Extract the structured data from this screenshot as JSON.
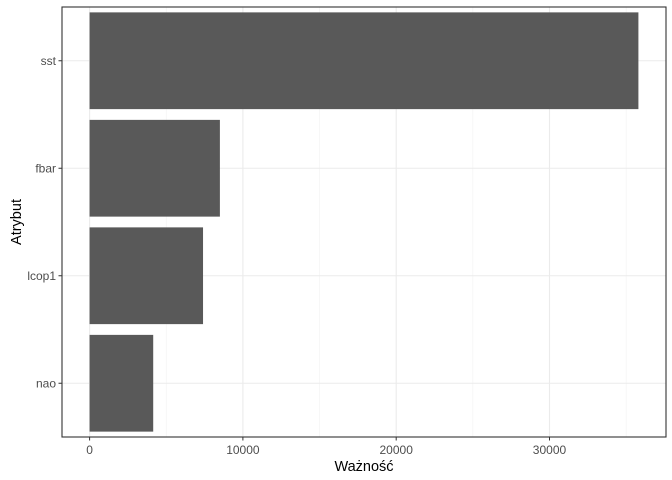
{
  "chart_data": {
    "type": "bar",
    "orientation": "horizontal",
    "categories": [
      "sst",
      "fbar",
      "lcop1",
      "nao"
    ],
    "values": [
      35800,
      8500,
      7400,
      4150
    ],
    "xlabel": "Ważność",
    "ylabel": "Atrybut",
    "xlim": [
      -1800,
      37600
    ],
    "xticks": [
      0,
      10000,
      20000,
      30000
    ],
    "xtick_labels": [
      "0",
      "10000",
      "20000",
      "30000"
    ],
    "grid": true,
    "legend": "none",
    "colors": {
      "bar": "#595959",
      "grid_major": "#ebebeb",
      "grid_minor": "#f2f2f2",
      "panel_border": "#333333",
      "tick_text": "#4d4d4d",
      "tick_mark": "#333333"
    }
  }
}
